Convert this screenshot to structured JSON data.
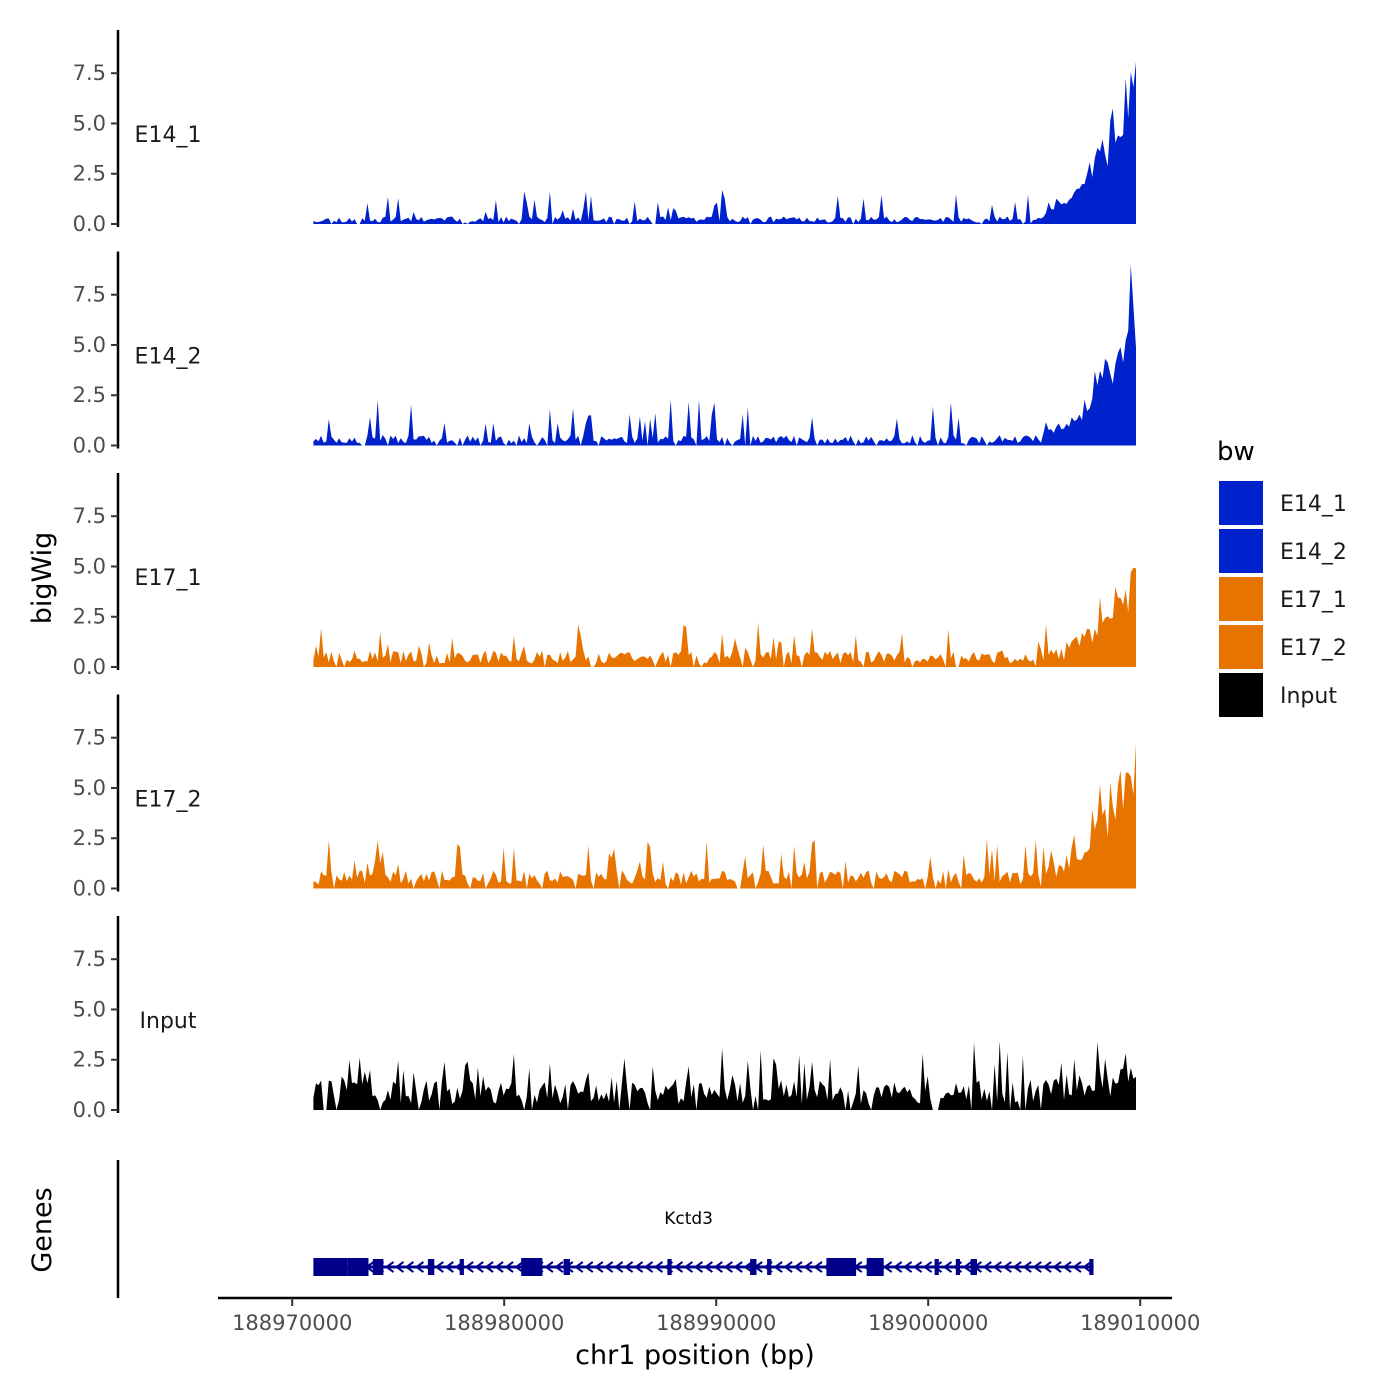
{
  "chart_data": {
    "type": "area",
    "ylabel": "bigWig",
    "xlabel": "chr1 position (bp)",
    "xlim": [
      188966500,
      189011500
    ],
    "ylim": [
      0,
      9.5
    ],
    "y_ticks": [
      0.0,
      2.5,
      5.0,
      7.5
    ],
    "y_tick_labels": [
      "0.0",
      "2.5",
      "5.0",
      "7.5"
    ],
    "x_ticks": [
      188970000,
      188980000,
      188990000,
      189000000,
      189010000
    ],
    "x_tick_labels": [
      "188970000",
      "188980000",
      "188990000",
      "189000000",
      "189010000"
    ],
    "data_range": [
      188971000,
      189009800
    ],
    "series": [
      {
        "name": "E14_1",
        "color": "#0022CC",
        "baseline": 0.25,
        "spike": 0.9,
        "peak": 9.2,
        "seed": 11
      },
      {
        "name": "E14_2",
        "color": "#0022CC",
        "baseline": 0.35,
        "spike": 1.2,
        "peak": 7.9,
        "seed": 23
      },
      {
        "name": "E17_1",
        "color": "#E87400",
        "baseline": 0.55,
        "spike": 1.1,
        "peak": 4.8,
        "seed": 37
      },
      {
        "name": "E17_2",
        "color": "#E87400",
        "baseline": 0.6,
        "spike": 1.3,
        "peak": 7.4,
        "seed": 41
      },
      {
        "name": "Input",
        "color": "#000000",
        "baseline": 1.0,
        "spike": 1.3,
        "peak": 1.9,
        "seed": 59
      }
    ],
    "legend": {
      "title": "bw",
      "position": "right",
      "entries": [
        {
          "label": "E14_1",
          "color": "#0022CC"
        },
        {
          "label": "E14_2",
          "color": "#0022CC"
        },
        {
          "label": "E17_1",
          "color": "#E87400"
        },
        {
          "label": "E17_2",
          "color": "#E87400"
        },
        {
          "label": "Input",
          "color": "#000000"
        }
      ]
    },
    "genes": {
      "panel_label": "Genes",
      "name": "Kctd3",
      "strand": "-",
      "color": "#00008B",
      "start": 188971000,
      "end": 189007800,
      "exons": [
        [
          188971000,
          188972600
        ],
        [
          188972600,
          188973600
        ],
        [
          188973800,
          188974300
        ],
        [
          188976400,
          188976700
        ],
        [
          188977900,
          188978100
        ],
        [
          188980800,
          188981800
        ],
        [
          188982800,
          188983100
        ],
        [
          188987700,
          188987900
        ],
        [
          188991600,
          188991900
        ],
        [
          188992400,
          188992600
        ],
        [
          188995200,
          188996600
        ],
        [
          188997100,
          188997900
        ],
        [
          189000300,
          189000500
        ],
        [
          189001300,
          189001500
        ],
        [
          189002000,
          189002300
        ],
        [
          189007600,
          189007800
        ]
      ]
    }
  }
}
